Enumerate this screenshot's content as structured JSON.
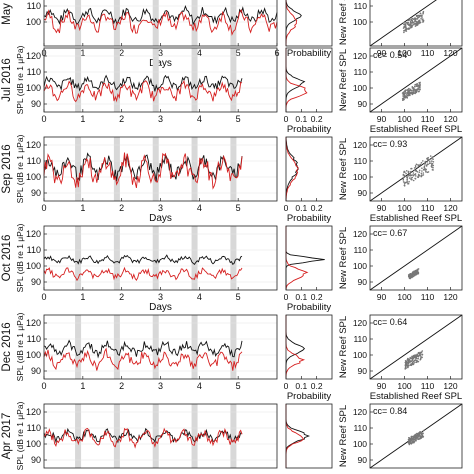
{
  "figure": {
    "time_xlabel": "Days",
    "prob_xlabel": "Probability",
    "scatter_xlabel": "Established Reef SPL",
    "scatter_ylabel": "New Reef SPL",
    "spl_ylabel": "SPL (dB re 1 μPa)",
    "colors": {
      "established": "#111111",
      "new": "#d62020",
      "dots": "#777777",
      "shade": "#d8d8d8"
    }
  },
  "chart_data": [
    {
      "type": "line",
      "row": 0,
      "period_label": "May",
      "x_ticks": [
        0,
        1,
        2,
        3,
        4,
        5,
        6
      ],
      "y_ticks": [
        100,
        110
      ],
      "show_days_label": true,
      "show_spl_label": false,
      "prob_ticks": [],
      "show_prob_label": true,
      "scatter_x_ticks": [
        90,
        100,
        110,
        120
      ],
      "scatter_y_ticks": [
        100,
        110
      ],
      "show_scatter_xlabel": false,
      "show_scatter_ylabel": true,
      "cc": ""
    },
    {
      "type": "line",
      "row": 1,
      "period_label": "Jul 2016",
      "x_ticks": [
        0,
        1,
        2,
        3,
        4,
        5
      ],
      "y_ticks": [
        90,
        100,
        110,
        120
      ],
      "show_days_label": false,
      "show_spl_label": true,
      "prob_ticks": [
        "0",
        "0.1",
        "0.2"
      ],
      "show_prob_label": true,
      "scatter_x_ticks": [
        90,
        100,
        110,
        120
      ],
      "scatter_y_ticks": [
        90,
        100,
        110,
        120
      ],
      "show_scatter_xlabel": true,
      "show_scatter_ylabel": true,
      "cc": "cc= 0.54"
    },
    {
      "type": "line",
      "row": 2,
      "period_label": "Sep 2016",
      "x_ticks": [
        0,
        1,
        2,
        3,
        4,
        5
      ],
      "y_ticks": [
        90,
        100,
        110,
        120
      ],
      "show_days_label": true,
      "show_spl_label": true,
      "prob_ticks": [
        "0",
        "0.1",
        "0.2"
      ],
      "show_prob_label": true,
      "scatter_x_ticks": [
        90,
        100,
        110,
        120
      ],
      "scatter_y_ticks": [
        90,
        100,
        110,
        120
      ],
      "show_scatter_xlabel": true,
      "show_scatter_ylabel": true,
      "cc": "cc= 0.93"
    },
    {
      "type": "line",
      "row": 3,
      "period_label": "Oct 2016",
      "x_ticks": [
        0,
        1,
        2,
        3,
        4,
        5
      ],
      "y_ticks": [
        90,
        100,
        110,
        120
      ],
      "show_days_label": true,
      "show_spl_label": true,
      "prob_ticks": [
        "0",
        "0.1",
        "0.2"
      ],
      "show_prob_label": true,
      "scatter_x_ticks": [
        90,
        100,
        110,
        120
      ],
      "scatter_y_ticks": [
        90,
        100,
        110,
        120
      ],
      "show_scatter_xlabel": false,
      "show_scatter_ylabel": true,
      "cc": "cc= 0.67"
    },
    {
      "type": "line",
      "row": 4,
      "period_label": "Dec 2016",
      "x_ticks": [
        0,
        1,
        2,
        3,
        4,
        5
      ],
      "y_ticks": [
        90,
        100,
        110,
        120
      ],
      "show_days_label": false,
      "show_spl_label": true,
      "prob_ticks": [
        "0",
        "0.1",
        "0.2"
      ],
      "show_prob_label": true,
      "scatter_x_ticks": [
        90,
        100,
        110,
        120
      ],
      "scatter_y_ticks": [
        90,
        100,
        110,
        120
      ],
      "show_scatter_xlabel": true,
      "show_scatter_ylabel": true,
      "cc": "cc= 0.64"
    },
    {
      "type": "line",
      "row": 5,
      "period_label": "Apr 2017",
      "x_ticks": [],
      "y_ticks": [
        90,
        100,
        110,
        120
      ],
      "show_days_label": false,
      "show_spl_label": true,
      "prob_ticks": [],
      "show_prob_label": false,
      "scatter_x_ticks": [],
      "scatter_y_ticks": [
        90,
        100,
        110,
        120
      ],
      "show_scatter_xlabel": false,
      "show_scatter_ylabel": true,
      "cc": "cc= 0.84"
    }
  ]
}
